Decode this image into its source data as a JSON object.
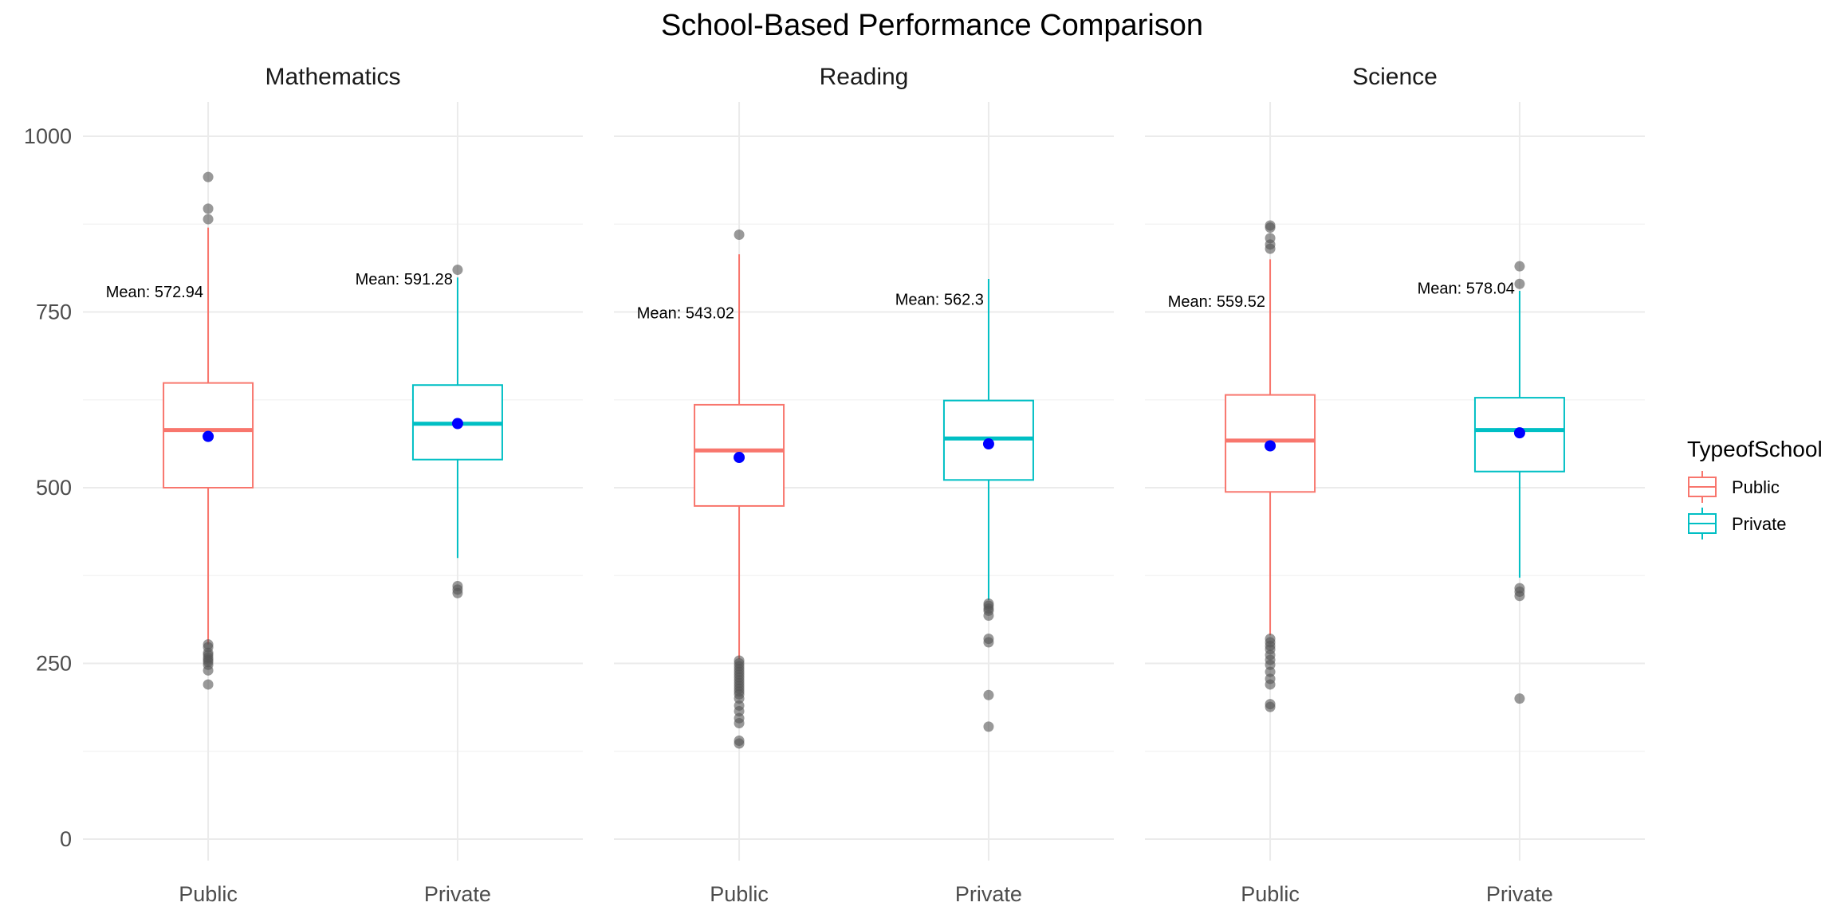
{
  "chart_data": {
    "type": "boxplot",
    "title": "School-Based Performance Comparison",
    "categories": [
      "Public",
      "Private"
    ],
    "ylim": [
      0,
      1050
    ],
    "yticks": [
      0,
      250,
      500,
      750,
      1000
    ],
    "grid": true,
    "legend": {
      "title": "TypeofSchool",
      "position": "right",
      "items": [
        {
          "label": "Public",
          "color": "#F8766D"
        },
        {
          "label": "Private",
          "color": "#00BFC4"
        }
      ]
    },
    "mean_point_color": "#0000FF",
    "outlier_color": "#555555",
    "panels": [
      {
        "subject": "Mathematics",
        "boxes": [
          {
            "category": "Public",
            "q1": 500,
            "median": 582,
            "q3": 649,
            "whisker_low": 277,
            "whisker_high": 870,
            "mean": 572.94,
            "mean_label": "Mean: 572.94",
            "outliers": [
              942,
              897,
              882,
              277,
              273,
              265,
              262,
              258,
              255,
              252,
              248,
              240,
              220
            ]
          },
          {
            "category": "Private",
            "q1": 540,
            "median": 591,
            "q3": 646,
            "whisker_low": 400,
            "whisker_high": 799,
            "mean": 591.28,
            "mean_label": "Mean: 591.28",
            "outliers": [
              810,
              360,
              355,
              350
            ]
          }
        ]
      },
      {
        "subject": "Reading",
        "boxes": [
          {
            "category": "Public",
            "q1": 474,
            "median": 553,
            "q3": 618,
            "whisker_low": 256,
            "whisker_high": 832,
            "mean": 543.02,
            "mean_label": "Mean: 543.02",
            "outliers": [
              860,
              254,
              250,
              246,
              242,
              238,
              234,
              230,
              226,
              222,
              218,
              214,
              210,
              206,
              200,
              190,
              182,
              172,
              165,
              140,
              136
            ]
          },
          {
            "category": "Private",
            "q1": 511,
            "median": 570,
            "q3": 624,
            "whisker_low": 340,
            "whisker_high": 797,
            "mean": 562.3,
            "mean_label": "Mean: 562.3",
            "outliers": [
              335,
              332,
              328,
              325,
              318,
              285,
              280,
              205,
              160
            ]
          }
        ]
      },
      {
        "subject": "Science",
        "boxes": [
          {
            "category": "Public",
            "q1": 494,
            "median": 567,
            "q3": 632,
            "whisker_low": 290,
            "whisker_high": 825,
            "mean": 559.52,
            "mean_label": "Mean: 559.52",
            "outliers": [
              873,
              870,
              855,
              846,
              840,
              285,
              280,
              275,
              270,
              262,
              255,
              248,
              238,
              228,
              220,
              192,
              188
            ]
          },
          {
            "category": "Private",
            "q1": 523,
            "median": 582,
            "q3": 628,
            "whisker_low": 372,
            "whisker_high": 780,
            "mean": 578.04,
            "mean_label": "Mean: 578.04",
            "outliers": [
              815,
              790,
              357,
              352,
              346,
              200
            ]
          }
        ]
      }
    ]
  }
}
